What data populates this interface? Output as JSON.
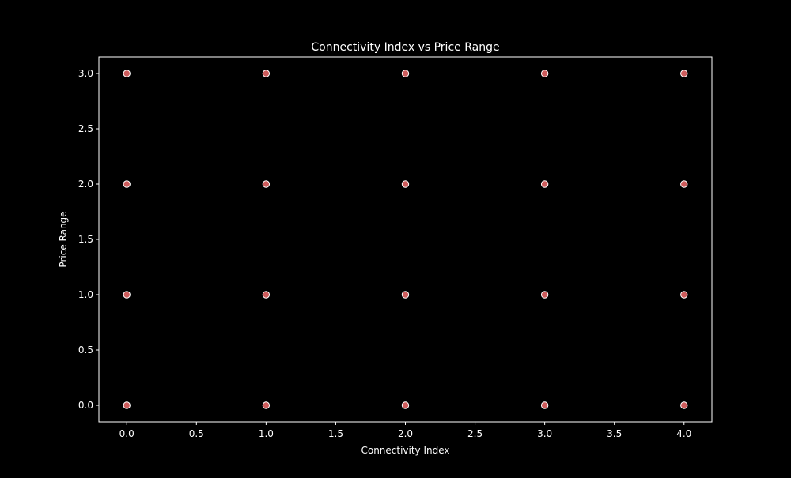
{
  "chart_data": {
    "type": "scatter",
    "title": "Connectivity Index vs Price Range",
    "xlabel": "Connectivity Index",
    "ylabel": "Price Range",
    "xlim": [
      -0.2,
      4.2
    ],
    "ylim": [
      -0.15,
      3.15
    ],
    "xticks": [
      0.0,
      0.5,
      1.0,
      1.5,
      2.0,
      2.5,
      3.0,
      3.5,
      4.0
    ],
    "xtick_labels": [
      "0.0",
      "0.5",
      "1.0",
      "1.5",
      "2.0",
      "2.5",
      "3.0",
      "3.5",
      "4.0"
    ],
    "yticks": [
      0.0,
      0.5,
      1.0,
      1.5,
      2.0,
      2.5,
      3.0
    ],
    "ytick_labels": [
      "0.0",
      "0.5",
      "1.0",
      "1.5",
      "2.0",
      "2.5",
      "3.0"
    ],
    "grid": false,
    "series": [
      {
        "color": "#cd5c5c",
        "edge_color": "#ffffff",
        "points": [
          {
            "x": 0,
            "y": 0
          },
          {
            "x": 0,
            "y": 1
          },
          {
            "x": 0,
            "y": 2
          },
          {
            "x": 0,
            "y": 3
          },
          {
            "x": 1,
            "y": 0
          },
          {
            "x": 1,
            "y": 1
          },
          {
            "x": 1,
            "y": 2
          },
          {
            "x": 1,
            "y": 3
          },
          {
            "x": 2,
            "y": 0
          },
          {
            "x": 2,
            "y": 1
          },
          {
            "x": 2,
            "y": 2
          },
          {
            "x": 2,
            "y": 3
          },
          {
            "x": 3,
            "y": 0
          },
          {
            "x": 3,
            "y": 1
          },
          {
            "x": 3,
            "y": 2
          },
          {
            "x": 3,
            "y": 3
          },
          {
            "x": 4,
            "y": 0
          },
          {
            "x": 4,
            "y": 1
          },
          {
            "x": 4,
            "y": 2
          },
          {
            "x": 4,
            "y": 3
          }
        ]
      }
    ],
    "background_color": "#000000",
    "foreground_color": "#ffffff"
  }
}
